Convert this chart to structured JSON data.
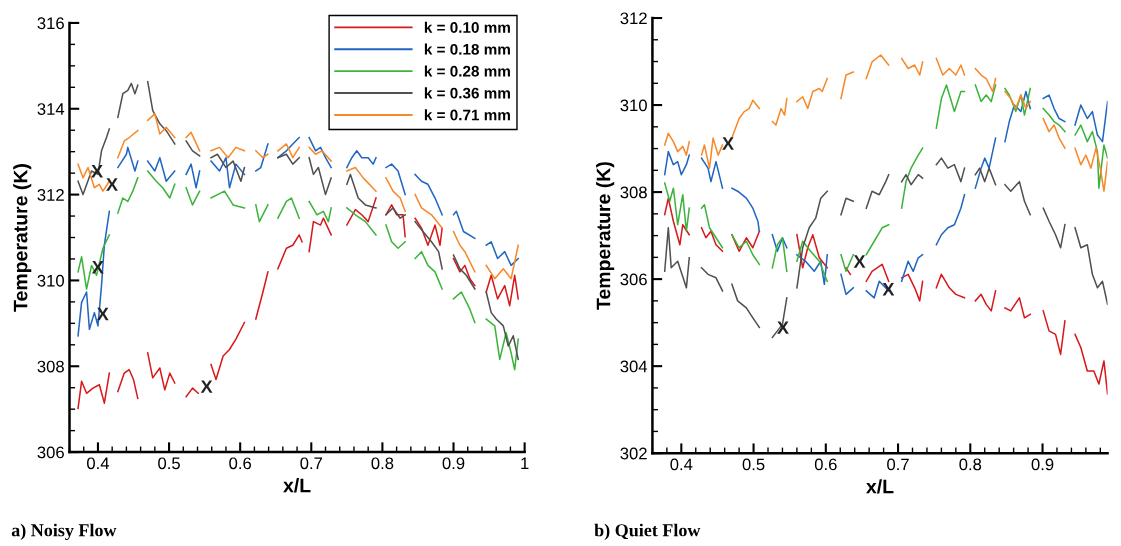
{
  "chart_data": [
    {
      "type": "line",
      "title": "a) Noisy Flow",
      "xlabel": "x/L",
      "ylabel": "Temperature (K)",
      "xlim": [
        0.36,
        1.0
      ],
      "ylim": [
        306,
        316
      ],
      "xticks": [
        {
          "value": 0.4,
          "label": "0.4"
        },
        {
          "value": 0.5,
          "label": "0.5"
        },
        {
          "value": 0.6,
          "label": "0.6"
        },
        {
          "value": 0.7,
          "label": "0.7"
        },
        {
          "value": 0.8,
          "label": "0.8"
        },
        {
          "value": 0.9,
          "label": "0.9"
        },
        {
          "value": 1.0,
          "label": "1"
        }
      ],
      "yticks": [
        306,
        308,
        310,
        312,
        314,
        316
      ],
      "grid": false,
      "legend": "top right",
      "marker": "none",
      "line_style": "solid",
      "annotations": [
        {
          "text": "X",
          "x": 0.391,
          "y": 312.51
        },
        {
          "text": "X",
          "x": 0.412,
          "y": 312.2
        },
        {
          "text": "X",
          "x": 0.392,
          "y": 310.27
        },
        {
          "text": "X",
          "x": 0.399,
          "y": 309.18
        },
        {
          "text": "X",
          "x": 0.545,
          "y": 307.49
        }
      ],
      "series": [
        {
          "name": "k = 0.10 mm",
          "color": "#d7191c",
          "x": [
            0.372,
            0.377,
            0.384,
            0.393,
            0.402,
            0.409,
            0.416,
            null,
            0.428,
            0.437,
            0.444,
            0.45,
            0.456,
            null,
            0.47,
            0.477,
            0.487,
            0.494,
            0.501,
            0.508,
            null,
            0.524,
            0.533,
            0.541,
            null,
            0.559,
            0.566,
            0.576,
            0.585,
            0.594,
            0.606,
            null,
            0.622,
            0.632,
            0.639,
            null,
            0.653,
            0.665,
            0.674,
            0.683,
            0.687,
            null,
            0.697,
            0.703,
            0.713,
            0.717,
            0.728,
            null,
            0.75,
            0.762,
            0.771,
            0.78,
            0.791,
            null,
            0.805,
            0.813,
            0.82,
            0.829,
            0.832,
            null,
            0.846,
            0.855,
            0.864,
            0.874,
            0.881,
            0.884,
            null,
            0.9,
            0.909,
            0.916,
            0.923,
            0.93,
            null,
            0.946,
            0.953,
            0.962,
            0.972,
            0.979,
            0.986,
            0.991
          ],
          "values": [
            307.02,
            307.65,
            307.37,
            307.49,
            307.57,
            307.14,
            307.84,
            null,
            307.41,
            307.84,
            307.92,
            307.69,
            307.25,
            null,
            308.31,
            307.73,
            307.96,
            307.45,
            307.84,
            307.61,
            null,
            307.29,
            307.49,
            307.37,
            null,
            308.04,
            307.69,
            308.24,
            308.39,
            308.63,
            309.02,
            null,
            309.1,
            309.73,
            310.2,
            null,
            310.27,
            310.75,
            310.82,
            311.06,
            310.9,
            null,
            310.67,
            311.37,
            311.29,
            311.45,
            311.06,
            null,
            311.29,
            311.65,
            311.53,
            311.37,
            311.92,
            null,
            311.53,
            311.76,
            311.53,
            311.53,
            311.02,
            null,
            311.45,
            311.22,
            310.82,
            311.29,
            310.82,
            311.22,
            null,
            310.51,
            310.2,
            310.35,
            310.04,
            309.88,
            null,
            309.73,
            310.12,
            309.57,
            309.88,
            309.41,
            310.12,
            309.57
          ]
        },
        {
          "name": "k = 0.18 mm",
          "color": "#2166c0",
          "x": [
            0.372,
            0.377,
            0.384,
            0.388,
            0.395,
            0.4,
            0.405,
            0.409,
            0.416,
            null,
            0.428,
            0.44,
            0.442,
            0.452,
            0.456,
            null,
            0.47,
            0.48,
            0.487,
            0.496,
            0.508,
            null,
            0.524,
            0.531,
            0.538,
            0.543,
            null,
            0.559,
            0.571,
            0.58,
            0.585,
            0.594,
            0.606,
            null,
            0.622,
            0.629,
            0.639,
            null,
            0.653,
            0.665,
            0.674,
            0.683,
            null,
            0.697,
            0.706,
            0.713,
            0.72,
            0.728,
            null,
            0.75,
            0.757,
            0.764,
            0.771,
            0.78,
            0.787,
            0.791,
            null,
            0.805,
            0.813,
            0.822,
            0.832,
            null,
            0.846,
            0.855,
            0.864,
            0.874,
            0.884,
            null,
            0.9,
            0.904,
            0.914,
            0.93,
            null,
            0.946,
            0.953,
            0.962,
            0.972,
            0.981,
            0.991
          ],
          "values": [
            308.71,
            309.49,
            309.73,
            308.86,
            309.25,
            308.94,
            309.88,
            310.82,
            311.61,
            null,
            312.63,
            312.94,
            313.1,
            312.55,
            312.78,
            null,
            312.78,
            312.55,
            312.86,
            312.31,
            312.55,
            null,
            312.47,
            312.71,
            312.16,
            312.55,
            null,
            312.78,
            312.55,
            312.86,
            312.16,
            312.71,
            312.47,
            null,
            312.55,
            312.63,
            313.18,
            null,
            312.86,
            313.02,
            313.18,
            313.33,
            null,
            313.33,
            313.02,
            313.1,
            312.86,
            312.63,
            null,
            312.63,
            312.86,
            313.02,
            312.86,
            312.86,
            312.71,
            312.86,
            null,
            312.63,
            312.71,
            312.55,
            312.0,
            null,
            312.47,
            312.31,
            312.24,
            311.92,
            311.53,
            null,
            311.53,
            311.61,
            311.14,
            310.98,
            null,
            310.82,
            310.9,
            310.51,
            310.67,
            310.35,
            310.51
          ]
        },
        {
          "name": "k = 0.28 mm",
          "color": "#3cb43c",
          "x": [
            0.372,
            0.377,
            0.384,
            0.391,
            0.398,
            0.407,
            0.416,
            null,
            0.428,
            0.435,
            0.442,
            0.449,
            0.456,
            null,
            0.47,
            0.482,
            0.491,
            0.501,
            0.508,
            null,
            0.524,
            0.533,
            0.543,
            null,
            0.559,
            0.578,
            0.59,
            0.606,
            null,
            0.622,
            0.627,
            0.639,
            null,
            0.653,
            0.665,
            0.672,
            0.683,
            null,
            0.697,
            0.708,
            0.717,
            0.724,
            0.728,
            null,
            0.75,
            0.762,
            0.776,
            0.791,
            null,
            0.805,
            0.813,
            0.822,
            0.832,
            null,
            0.846,
            0.855,
            0.864,
            0.874,
            0.884,
            null,
            0.9,
            0.911,
            0.923,
            0.93,
            null,
            0.946,
            0.958,
            0.965,
            0.974,
            0.981,
            0.986,
            0.991
          ],
          "values": [
            310.2,
            310.55,
            309.8,
            310.35,
            310.12,
            310.75,
            311.06,
            null,
            311.57,
            311.92,
            311.84,
            312.08,
            312.39,
            null,
            312.55,
            312.31,
            312.16,
            311.92,
            312.24,
            null,
            312.16,
            311.76,
            312.08,
            null,
            311.92,
            312.08,
            311.76,
            311.69,
            null,
            311.76,
            311.37,
            311.76,
            null,
            311.45,
            311.84,
            311.92,
            311.45,
            null,
            311.84,
            311.53,
            311.61,
            311.37,
            311.69,
            null,
            311.69,
            311.53,
            311.37,
            311.06,
            null,
            311.29,
            310.9,
            310.75,
            310.9,
            null,
            310.51,
            310.67,
            310.35,
            310.2,
            309.8,
            null,
            309.57,
            309.73,
            309.33,
            309.02,
            null,
            309.1,
            308.94,
            308.16,
            308.78,
            308.31,
            307.92,
            308.63
          ]
        },
        {
          "name": "k = 0.36 mm",
          "color": "#505050",
          "x": [
            0.372,
            0.379,
            0.391,
            0.4,
            0.405,
            0.412,
            0.416,
            null,
            0.428,
            0.435,
            0.442,
            0.447,
            0.452,
            0.456,
            null,
            0.47,
            0.477,
            0.487,
            0.496,
            0.508,
            null,
            0.524,
            0.533,
            0.543,
            null,
            0.559,
            0.568,
            0.58,
            0.59,
            0.601,
            0.606,
            null,
            0.653,
            0.665,
            0.674,
            0.683,
            null,
            0.697,
            0.703,
            0.71,
            0.72,
            0.728,
            null,
            0.75,
            0.755,
            0.766,
            0.776,
            0.791,
            null,
            0.805,
            0.815,
            0.825,
            0.832,
            null,
            0.846,
            0.857,
            0.869,
            0.879,
            0.884,
            null,
            0.9,
            0.909,
            0.918,
            0.93,
            null,
            0.946,
            0.953,
            0.96,
            0.97,
            0.977,
            0.984,
            0.991
          ],
          "values": [
            312.31,
            312.0,
            312.55,
            312.47,
            313.02,
            313.33,
            313.53,
            null,
            313.8,
            314.35,
            314.43,
            314.59,
            314.35,
            314.55,
            null,
            314.63,
            313.96,
            313.65,
            313.49,
            313.18,
            null,
            313.25,
            313.02,
            312.9,
            null,
            312.86,
            312.94,
            312.63,
            312.78,
            312.31,
            312.63,
            null,
            312.86,
            312.94,
            312.71,
            312.86,
            null,
            312.86,
            312.47,
            312.63,
            312.0,
            312.39,
            null,
            312.24,
            312.47,
            311.92,
            311.76,
            311.69,
            null,
            311.53,
            311.69,
            311.45,
            311.53,
            null,
            311.37,
            311.14,
            310.9,
            310.67,
            310.27,
            null,
            310.59,
            310.27,
            310.12,
            309.8,
            null,
            309.73,
            309.25,
            309.1,
            308.94,
            308.47,
            308.71,
            308.16
          ]
        },
        {
          "name": "k = 0.71 mm",
          "color": "#f7892a",
          "x": [
            0.372,
            0.379,
            0.386,
            0.395,
            0.402,
            0.407,
            0.416,
            null,
            0.428,
            0.437,
            0.444,
            0.456,
            null,
            0.47,
            0.48,
            0.487,
            0.496,
            0.508,
            null,
            0.524,
            0.531,
            0.543,
            null,
            0.559,
            0.571,
            0.583,
            0.594,
            0.606,
            null,
            0.622,
            0.632,
            0.639,
            null,
            0.653,
            0.665,
            0.674,
            0.683,
            null,
            0.697,
            0.706,
            0.715,
            0.728,
            null,
            0.75,
            0.762,
            0.773,
            0.791,
            null,
            0.805,
            0.815,
            0.825,
            0.832,
            null,
            0.846,
            0.855,
            0.869,
            0.884,
            null,
            0.9,
            0.909,
            0.916,
            0.93,
            null,
            0.946,
            0.958,
            0.97,
            0.981,
            0.991
          ],
          "values": [
            312.71,
            312.39,
            312.63,
            312.16,
            312.24,
            312.08,
            312.31,
            null,
            312.86,
            313.25,
            313.33,
            313.49,
            null,
            313.73,
            313.88,
            313.41,
            313.57,
            313.33,
            null,
            313.33,
            313.45,
            313.02,
            null,
            313.02,
            313.1,
            312.86,
            313.1,
            313.02,
            null,
            313.02,
            312.86,
            312.94,
            null,
            313.02,
            313.18,
            312.86,
            313.1,
            null,
            313.1,
            312.94,
            313.02,
            312.78,
            null,
            312.55,
            312.63,
            312.39,
            312.08,
            null,
            312.39,
            312.08,
            311.92,
            311.61,
            null,
            312.0,
            311.69,
            311.53,
            311.22,
            null,
            311.14,
            310.82,
            310.67,
            310.2,
            null,
            310.35,
            310.04,
            310.27,
            310.04,
            310.82
          ]
        }
      ]
    },
    {
      "type": "line",
      "title": "b) Quiet Flow",
      "xlabel": "x/L",
      "ylabel": "Temperature (K)",
      "xlim": [
        0.36,
        0.99
      ],
      "ylim": [
        302,
        312
      ],
      "xticks": [
        {
          "value": 0.4,
          "label": "0.4"
        },
        {
          "value": 0.5,
          "label": "0.5"
        },
        {
          "value": 0.6,
          "label": "0.6"
        },
        {
          "value": 0.7,
          "label": "0.7"
        },
        {
          "value": 0.8,
          "label": "0.8"
        },
        {
          "value": 0.9,
          "label": "0.9"
        }
      ],
      "yticks": [
        302,
        304,
        306,
        308,
        310,
        312
      ],
      "grid": false,
      "marker": "none",
      "line_style": "solid",
      "annotations": [
        {
          "text": "X",
          "x": 0.457,
          "y": 309.08
        },
        {
          "text": "X",
          "x": 0.533,
          "y": 304.85
        },
        {
          "text": "X",
          "x": 0.639,
          "y": 306.37
        },
        {
          "text": "X",
          "x": 0.679,
          "y": 305.73
        }
      ],
      "series": [
        {
          "color": "#d7191c",
          "x": [
            0.377,
            0.382,
            0.389,
            0.398,
            0.402,
            0.411,
            null,
            0.428,
            0.434,
            0.441,
            0.448,
            0.457,
            null,
            0.47,
            0.48,
            0.49,
            0.499,
            0.508,
            null,
            0.56,
            0.568,
            0.575,
            0.582,
            0.591,
            0.602,
            null,
            0.628,
            0.634,
            null,
            0.656,
            0.664,
            0.678,
            0.687,
            null,
            0.705,
            0.714,
            0.723,
            0.73,
            0.734,
            null,
            0.753,
            0.76,
            0.771,
            0.78,
            0.792,
            null,
            0.807,
            0.815,
            0.822,
            0.829,
            0.835,
            null,
            0.848,
            0.856,
            0.868,
            0.875,
            0.883,
            null,
            0.901,
            0.909,
            0.918,
            0.925,
            0.931,
            null,
            0.945,
            0.953,
            0.962,
            0.971,
            0.978,
            0.985,
            0.99
          ],
          "values": [
            307.48,
            307.86,
            307.33,
            306.79,
            307.25,
            307.02,
            null,
            307.18,
            306.95,
            307.1,
            306.79,
            306.64,
            null,
            307.02,
            306.64,
            306.95,
            306.72,
            307.1,
            null,
            307.02,
            306.26,
            306.72,
            307.02,
            306.49,
            306.26,
            null,
            306.26,
            306.11,
            null,
            305.95,
            306.18,
            306.34,
            305.95,
            null,
            306.03,
            306.11,
            305.8,
            305.5,
            305.95,
            null,
            305.8,
            306.11,
            305.8,
            305.65,
            305.57,
            null,
            305.5,
            305.65,
            305.42,
            305.27,
            305.73,
            null,
            305.34,
            305.27,
            305.57,
            305.11,
            305.19,
            null,
            305.27,
            304.81,
            304.73,
            304.27,
            305.04,
            null,
            304.73,
            304.43,
            303.89,
            303.89,
            303.59,
            304.12,
            303.36
          ]
        },
        {
          "color": "#2166c0",
          "x": [
            0.377,
            0.382,
            0.389,
            0.395,
            0.4,
            0.407,
            0.411,
            null,
            0.428,
            0.437,
            0.441,
            0.448,
            0.457,
            null,
            0.47,
            0.478,
            0.49,
            0.499,
            0.506,
            0.508,
            null,
            0.526,
            0.533,
            0.54,
            0.546,
            null,
            0.56,
            0.572,
            0.584,
            0.593,
            0.598,
            0.602,
            null,
            0.621,
            0.628,
            0.638,
            null,
            0.656,
            0.667,
            0.674,
            0.687,
            null,
            0.705,
            0.714,
            0.721,
            0.728,
            0.734,
            null,
            0.753,
            0.76,
            0.769,
            0.778,
            0.787,
            0.792,
            null,
            0.807,
            0.815,
            0.82,
            0.826,
            0.835,
            null,
            0.848,
            0.854,
            0.861,
            0.87,
            0.877,
            0.883,
            null,
            0.901,
            0.909,
            0.916,
            0.923,
            0.931,
            null,
            0.945,
            0.953,
            0.962,
            0.969,
            0.976,
            0.983,
            0.99
          ],
          "values": [
            308.4,
            308.93,
            308.63,
            308.7,
            308.4,
            308.63,
            308.85,
            null,
            308.78,
            308.55,
            308.24,
            308.7,
            308.09,
            null,
            308.09,
            308.02,
            307.86,
            307.63,
            307.33,
            307.1,
            null,
            307.02,
            306.64,
            306.95,
            306.72,
            null,
            306.56,
            306.41,
            306.18,
            306.41,
            305.88,
            306.56,
            null,
            306.11,
            305.65,
            305.8,
            null,
            305.73,
            305.57,
            305.95,
            305.73,
            null,
            305.95,
            306.41,
            306.18,
            306.49,
            306.56,
            null,
            306.79,
            307.02,
            307.18,
            307.25,
            307.63,
            307.94,
            null,
            308.09,
            308.55,
            308.78,
            308.55,
            309.24,
            null,
            309.16,
            309.62,
            310.0,
            309.85,
            310.31,
            309.92,
            null,
            310.15,
            310.23,
            309.92,
            309.69,
            309.62,
            null,
            309.54,
            310.0,
            309.69,
            309.85,
            309.31,
            309.16,
            310.08
          ]
        },
        {
          "color": "#3cb43c",
          "x": [
            0.377,
            0.384,
            0.389,
            0.395,
            0.402,
            0.407,
            0.411,
            null,
            0.428,
            0.432,
            0.439,
            0.448,
            0.457,
            null,
            0.47,
            0.48,
            0.49,
            0.499,
            0.508,
            null,
            0.526,
            0.533,
            0.54,
            0.546,
            null,
            0.56,
            0.568,
            0.579,
            0.591,
            0.602,
            null,
            0.621,
            0.628,
            0.638,
            null,
            0.656,
            0.667,
            0.678,
            0.687,
            null,
            0.705,
            0.711,
            0.718,
            0.728,
            0.734,
            null,
            0.753,
            0.76,
            0.767,
            0.778,
            0.787,
            0.792,
            null,
            0.807,
            0.815,
            0.822,
            0.829,
            0.835,
            null,
            0.848,
            0.854,
            0.863,
            0.87,
            0.875,
            0.883,
            null,
            0.901,
            0.909,
            0.916,
            0.923,
            0.931,
            null,
            0.945,
            0.953,
            0.962,
            0.969,
            0.976,
            0.978,
            0.985,
            0.99
          ],
          "values": [
            308.21,
            307.79,
            308.09,
            307.25,
            307.94,
            307.1,
            307.63,
            null,
            307.63,
            307.71,
            307.18,
            306.95,
            306.72,
            null,
            307.02,
            306.72,
            306.87,
            306.56,
            306.34,
            null,
            306.26,
            306.79,
            306.95,
            306.18,
            null,
            306.41,
            306.87,
            306.64,
            306.41,
            305.95,
            null,
            306.56,
            306.18,
            306.56,
            null,
            306.56,
            306.87,
            307.18,
            307.25,
            null,
            307.63,
            308.24,
            308.55,
            308.85,
            309.01,
            null,
            309.47,
            310.15,
            310.46,
            309.85,
            310.31,
            310.31,
            null,
            310.46,
            310.08,
            310.23,
            310.08,
            310.46,
            null,
            310.38,
            310.23,
            309.85,
            310.23,
            309.77,
            310.38,
            null,
            309.92,
            309.77,
            309.62,
            309.54,
            309.39,
            null,
            309.31,
            309.54,
            309.16,
            309.39,
            308.93,
            308.09,
            309.08,
            308.78
          ]
        },
        {
          "color": "#505050",
          "x": [
            0.377,
            0.382,
            0.386,
            0.395,
            0.407,
            0.411,
            null,
            0.428,
            0.437,
            0.448,
            0.457,
            null,
            0.47,
            0.478,
            0.49,
            0.499,
            0.508,
            null,
            0.526,
            0.533,
            0.54,
            0.546,
            null,
            0.56,
            0.568,
            0.577,
            0.586,
            0.593,
            0.602,
            null,
            0.621,
            0.628,
            0.638,
            null,
            0.656,
            0.664,
            0.674,
            0.683,
            0.687,
            null,
            0.705,
            0.711,
            0.718,
            0.728,
            0.734,
            null,
            0.753,
            0.76,
            0.769,
            0.778,
            0.787,
            0.792,
            null,
            0.807,
            0.813,
            0.82,
            0.826,
            0.835,
            null,
            0.848,
            0.856,
            0.868,
            0.875,
            0.883,
            null,
            0.901,
            0.909,
            0.918,
            0.925,
            0.931,
            null,
            0.945,
            0.953,
            0.962,
            0.969,
            0.976,
            0.983,
            0.99
          ],
          "values": [
            306.18,
            307.18,
            306.26,
            306.41,
            305.8,
            306.49,
            null,
            306.26,
            306.11,
            306.03,
            305.73,
            null,
            305.88,
            305.5,
            305.34,
            305.11,
            304.89,
            null,
            304.66,
            304.81,
            304.96,
            305.57,
            null,
            305.8,
            306.72,
            307.18,
            307.4,
            307.86,
            308.02,
            null,
            307.48,
            307.86,
            307.79,
            null,
            307.63,
            308.02,
            307.94,
            308.24,
            308.4,
            null,
            308.24,
            308.4,
            308.17,
            308.4,
            308.32,
            null,
            308.63,
            308.78,
            308.55,
            308.63,
            308.24,
            308.55,
            null,
            308.4,
            308.55,
            308.24,
            308.55,
            308.17,
            null,
            308.17,
            308.02,
            308.24,
            307.79,
            307.48,
            null,
            307.63,
            307.33,
            307.02,
            306.72,
            307.25,
            null,
            307.18,
            306.72,
            306.79,
            306.11,
            305.8,
            305.95,
            305.42
          ]
        },
        {
          "color": "#f7892a",
          "x": [
            0.377,
            0.382,
            0.389,
            0.395,
            0.402,
            0.407,
            0.411,
            null,
            0.428,
            0.432,
            0.439,
            0.444,
            0.451,
            0.457,
            null,
            0.47,
            0.48,
            0.487,
            0.494,
            0.499,
            0.508,
            null,
            0.526,
            0.531,
            0.538,
            0.543,
            0.546,
            null,
            0.56,
            0.568,
            0.575,
            0.582,
            0.591,
            0.595,
            0.602,
            null,
            0.621,
            0.628,
            0.638,
            null,
            0.656,
            0.664,
            0.676,
            0.687,
            null,
            0.705,
            0.714,
            0.723,
            0.73,
            0.734,
            null,
            0.753,
            0.762,
            0.771,
            0.78,
            0.787,
            0.792,
            null,
            0.807,
            0.815,
            0.822,
            0.831,
            0.835,
            null,
            0.848,
            0.856,
            0.863,
            0.87,
            0.877,
            0.883,
            null,
            0.901,
            0.909,
            0.916,
            0.923,
            0.931,
            null,
            0.945,
            0.953,
            0.96,
            0.967,
            0.974,
            0.98,
            0.985,
            0.99
          ],
          "values": [
            309.08,
            309.35,
            309.16,
            308.93,
            309.05,
            308.85,
            309.16,
            null,
            308.85,
            309.08,
            308.55,
            309.24,
            308.85,
            309.08,
            null,
            309.24,
            309.69,
            309.85,
            309.92,
            310.11,
            309.92,
            null,
            309.62,
            309.54,
            309.92,
            309.77,
            310.15,
            null,
            310.08,
            310.19,
            309.92,
            310.31,
            310.38,
            310.31,
            310.61,
            null,
            310.15,
            310.69,
            310.76,
            null,
            310.61,
            310.99,
            311.15,
            310.92,
            null,
            311.07,
            310.84,
            310.92,
            310.69,
            310.99,
            null,
            311.07,
            310.69,
            310.84,
            310.69,
            310.92,
            310.69,
            null,
            310.84,
            310.69,
            310.61,
            310.31,
            310.61,
            null,
            310.31,
            310.15,
            309.92,
            310.23,
            309.92,
            310.08,
            null,
            309.69,
            309.39,
            309.54,
            309.24,
            309.01,
            null,
            309.01,
            308.63,
            308.85,
            308.55,
            309.01,
            308.55,
            308.02,
            308.7
          ]
        }
      ]
    }
  ]
}
